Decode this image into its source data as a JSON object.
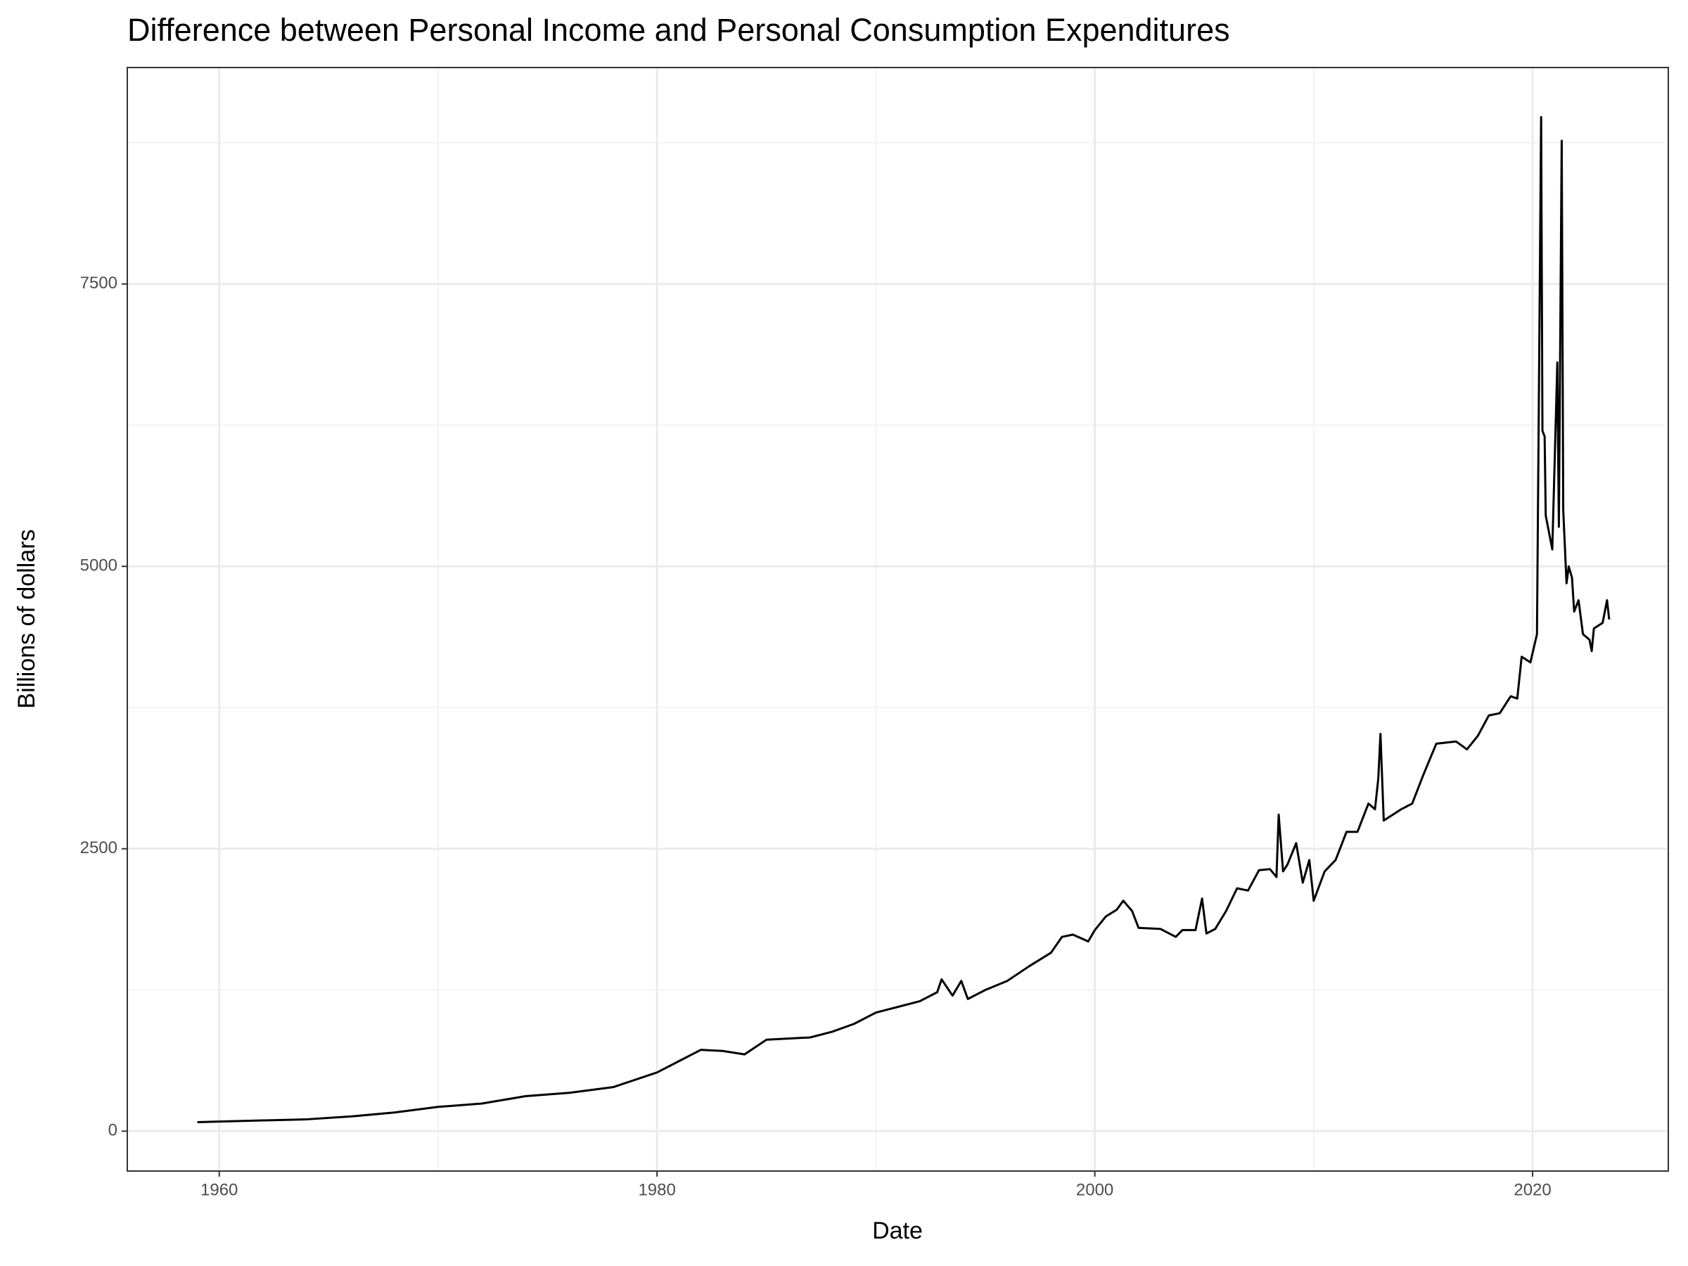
{
  "chart_data": {
    "type": "line",
    "title": "Difference between Personal Income and Personal Consumption Expenditures",
    "x_label": "Date",
    "y_label": "Billions of dollars",
    "color": "#000000",
    "grid": true,
    "xlim": [
      1955.8,
      2026.2
    ],
    "xticks": [
      1960,
      1980,
      2000,
      2020
    ],
    "xminorticks": [
      1970,
      1990,
      2010
    ],
    "ylim": [
      -353,
      9416
    ],
    "yticks": [
      0,
      2500,
      5000,
      7500
    ],
    "yminorticks": [
      1250,
      3750,
      6250,
      8750
    ],
    "x": [
      1959,
      1960,
      1962,
      1964,
      1966,
      1968,
      1970,
      1972,
      1974,
      1976,
      1978,
      1980,
      1981,
      1982,
      1983,
      1984,
      1985,
      1986,
      1987,
      1988,
      1989,
      1990,
      1991,
      1992,
      1992.8,
      1993,
      1993.5,
      1993.9,
      1994.2,
      1995,
      1996,
      1997,
      1998,
      1998.5,
      1999,
      1999.7,
      2000,
      2000.5,
      2001,
      2001.3,
      2001.7,
      2002,
      2003,
      2003.7,
      2004,
      2004.6,
      2004.9,
      2005.1,
      2005.5,
      2006,
      2006.5,
      2007,
      2007.5,
      2008,
      2008.3,
      2008.4,
      2008.6,
      2008.8,
      2009.2,
      2009.5,
      2009.8,
      2010,
      2010.5,
      2011,
      2011.5,
      2012,
      2012.5,
      2012.8,
      2012.95,
      2013.05,
      2013.2,
      2014,
      2014.5,
      2015,
      2015.6,
      2016.5,
      2017,
      2017.5,
      2018,
      2018.5,
      2019,
      2019.3,
      2019.5,
      2019.9,
      2020.2,
      2020.39,
      2020.45,
      2020.55,
      2020.6,
      2020.9,
      2021.13,
      2021.2,
      2021.33,
      2021.4,
      2021.55,
      2021.65,
      2021.8,
      2021.9,
      2022.1,
      2022.3,
      2022.6,
      2022.7,
      2022.8,
      2023.2,
      2023.4,
      2023.5
    ],
    "values": [
      80,
      85,
      95,
      105,
      130,
      165,
      215,
      245,
      310,
      340,
      390,
      520,
      620,
      720,
      710,
      680,
      810,
      820,
      830,
      880,
      950,
      1050,
      1100,
      1150,
      1230,
      1344,
      1200,
      1330,
      1170,
      1250,
      1330,
      1460,
      1580,
      1720,
      1740,
      1680,
      1780,
      1900,
      1960,
      2040,
      1950,
      1800,
      1790,
      1720,
      1780,
      1780,
      2059,
      1750,
      1790,
      1950,
      2150,
      2130,
      2310,
      2320,
      2250,
      2802,
      2300,
      2360,
      2550,
      2200,
      2400,
      2040,
      2300,
      2400,
      2650,
      2650,
      2900,
      2850,
      3120,
      3517,
      2750,
      2850,
      2900,
      3150,
      3430,
      3450,
      3380,
      3500,
      3680,
      3700,
      3850,
      3830,
      4200,
      4150,
      4400,
      8977,
      6200,
      6150,
      5450,
      5150,
      6805,
      5350,
      8768,
      5500,
      4850,
      5000,
      4900,
      4600,
      4700,
      4400,
      4350,
      4250,
      4450,
      4500,
      4700,
      4530
    ]
  }
}
